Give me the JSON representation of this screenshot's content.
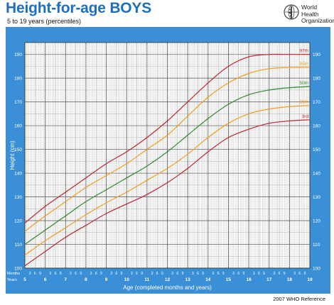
{
  "header": {
    "title": "Height-for-age  BOYS",
    "subtitle": "5 to 19 years (percentiles)",
    "org_line1": "World Health",
    "org_line2": "Organization",
    "logo_icon": "who-emblem-icon"
  },
  "footer": {
    "reference": "2007 WHO Reference"
  },
  "colors": {
    "panel_bg": "#3a8fd6",
    "plot_bg": "#ffffff",
    "title": "#1e6fc0",
    "p97": "#c0262d",
    "p85": "#f39c1f",
    "p50": "#2e8b2e",
    "p15": "#f39c1f",
    "p3": "#c0262d"
  },
  "chart_data": {
    "type": "line",
    "xlabel": "Age (completed months and years)",
    "ylabel": "Height (cm)",
    "xlim": [
      5,
      19
    ],
    "ylim": [
      100,
      195
    ],
    "yticks": [
      100,
      110,
      120,
      130,
      140,
      150,
      160,
      170,
      180,
      190
    ],
    "year_ticks": [
      5,
      6,
      7,
      8,
      9,
      10,
      11,
      12,
      13,
      14,
      15,
      16,
      17,
      18,
      19
    ],
    "month_labels": [
      "3",
      "6",
      "9"
    ],
    "row_labels": {
      "months": "Months",
      "years": "Years"
    },
    "grid": true,
    "x": [
      5,
      6,
      7,
      8,
      9,
      10,
      11,
      12,
      13,
      14,
      15,
      16,
      17,
      18,
      19
    ],
    "series": [
      {
        "name": "97th",
        "values": [
          119,
          126,
          132,
          138,
          144,
          149,
          155,
          162,
          170,
          178,
          185,
          189,
          190,
          190,
          190
        ]
      },
      {
        "name": "85th",
        "values": [
          115.5,
          122,
          128,
          134,
          139,
          144,
          150,
          156,
          164,
          172,
          178,
          182,
          184,
          184.5,
          184.5
        ]
      },
      {
        "name": "50th",
        "values": [
          110,
          116,
          122,
          128,
          133,
          138,
          143,
          149,
          156,
          163,
          169,
          173,
          175,
          176,
          176.5
        ]
      },
      {
        "name": "15th",
        "values": [
          105.5,
          111.5,
          117,
          122.5,
          127.5,
          132,
          137,
          142,
          148,
          155,
          161,
          165,
          167,
          168,
          168.5
        ]
      },
      {
        "name": "3rd",
        "values": [
          101,
          107,
          113,
          118,
          123,
          127,
          131,
          136,
          142,
          149,
          155,
          158.5,
          161,
          162,
          162.5
        ]
      }
    ]
  }
}
